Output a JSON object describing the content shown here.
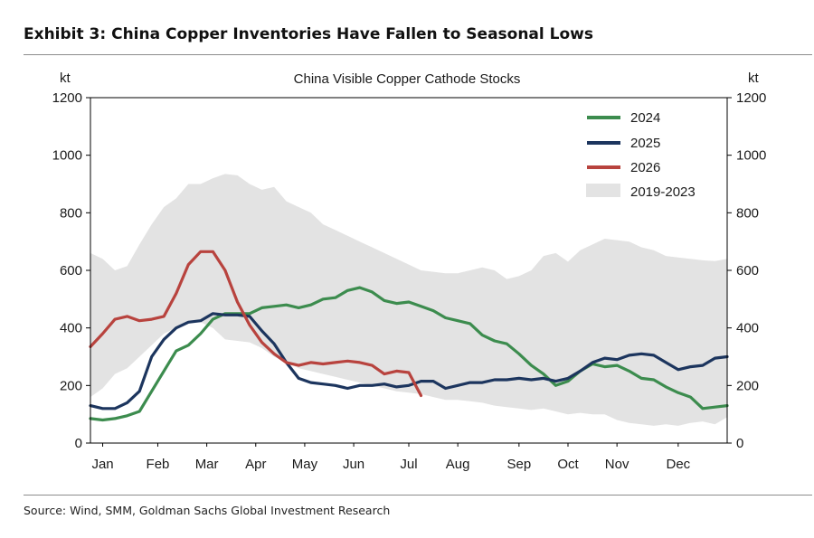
{
  "exhibit_title": "Exhibit 3: China Copper Inventories Have Fallen to Seasonal Lows",
  "source": "Source: Wind, SMM, Goldman Sachs Global Investment Research",
  "colors": {
    "2024": "#3c8c4e",
    "2025": "#1c355e",
    "2026": "#b8433e",
    "range": "#e3e3e3"
  },
  "chart_data": {
    "type": "line",
    "title": "China Visible Copper Cathode Stocks",
    "ylabel_left": "kt",
    "ylabel_right": "kt",
    "ylim": [
      0,
      1200
    ],
    "yticks": [
      0,
      200,
      400,
      600,
      800,
      1000,
      1200
    ],
    "x_unit": "week of year",
    "xlim": [
      1,
      53
    ],
    "xtick_labels": [
      "Jan",
      "Feb",
      "Mar",
      "Apr",
      "May",
      "Jun",
      "Jul",
      "Aug",
      "Sep",
      "Oct",
      "Nov",
      "Dec"
    ],
    "xtick_weeks": [
      2,
      6.5,
      10.5,
      14.5,
      18.5,
      22.5,
      27,
      31,
      36,
      40,
      44,
      49
    ],
    "grid": false,
    "legend": "top-right",
    "legend_entries": [
      "2024",
      "2025",
      "2026",
      "2019-2023"
    ],
    "band": {
      "name": "2019-2023",
      "x": [
        1,
        2,
        3,
        4,
        5,
        6,
        7,
        8,
        9,
        10,
        11,
        12,
        13,
        14,
        15,
        16,
        17,
        18,
        19,
        20,
        21,
        22,
        23,
        24,
        25,
        26,
        27,
        28,
        29,
        30,
        31,
        32,
        33,
        34,
        35,
        36,
        37,
        38,
        39,
        40,
        41,
        42,
        43,
        44,
        45,
        46,
        47,
        48,
        49,
        50,
        51,
        52,
        53
      ],
      "upper": [
        660,
        640,
        600,
        615,
        690,
        760,
        820,
        850,
        900,
        900,
        920,
        935,
        930,
        900,
        880,
        890,
        840,
        820,
        800,
        760,
        740,
        720,
        700,
        680,
        660,
        640,
        620,
        600,
        595,
        590,
        590,
        600,
        610,
        600,
        570,
        580,
        600,
        650,
        660,
        630,
        670,
        690,
        710,
        705,
        700,
        680,
        670,
        650,
        645,
        640,
        635,
        632,
        640
      ],
      "lower": [
        160,
        190,
        240,
        260,
        300,
        340,
        380,
        400,
        420,
        420,
        400,
        360,
        355,
        350,
        330,
        300,
        280,
        260,
        250,
        240,
        230,
        220,
        210,
        200,
        190,
        180,
        175,
        170,
        160,
        150,
        150,
        145,
        140,
        130,
        125,
        120,
        115,
        120,
        110,
        100,
        105,
        100,
        100,
        80,
        70,
        65,
        60,
        65,
        60,
        70,
        75,
        65,
        90
      ]
    },
    "series": [
      {
        "name": "2024",
        "x": [
          1,
          2,
          3,
          4,
          5,
          6,
          7,
          8,
          9,
          10,
          11,
          12,
          13,
          14,
          15,
          16,
          17,
          18,
          19,
          20,
          21,
          22,
          23,
          24,
          25,
          26,
          27,
          28,
          29,
          30,
          31,
          32,
          33,
          34,
          35,
          36,
          37,
          38,
          39,
          40,
          41,
          42,
          43,
          44,
          45,
          46,
          47,
          48,
          49,
          50,
          51,
          52,
          53
        ],
        "values": [
          85,
          80,
          85,
          95,
          110,
          180,
          250,
          320,
          340,
          380,
          430,
          450,
          450,
          450,
          470,
          475,
          480,
          470,
          480,
          500,
          505,
          530,
          540,
          525,
          495,
          485,
          490,
          475,
          460,
          435,
          425,
          415,
          375,
          355,
          345,
          310,
          270,
          240,
          200,
          215,
          250,
          275,
          265,
          270,
          250,
          225,
          220,
          195,
          175,
          160,
          120,
          125,
          130
        ]
      },
      {
        "name": "2025",
        "x": [
          1,
          2,
          3,
          4,
          5,
          6,
          7,
          8,
          9,
          10,
          11,
          12,
          13,
          14,
          15,
          16,
          17,
          18,
          19,
          20,
          21,
          22,
          23,
          24,
          25,
          26,
          27,
          28,
          29,
          30,
          31,
          32,
          33,
          34,
          35,
          36,
          37,
          38,
          39,
          40,
          41,
          42,
          43,
          44,
          45,
          46,
          47,
          48,
          49,
          50,
          51,
          52,
          53
        ],
        "values": [
          130,
          120,
          120,
          140,
          180,
          300,
          360,
          400,
          420,
          425,
          450,
          445,
          445,
          440,
          390,
          345,
          280,
          225,
          210,
          205,
          200,
          190,
          200,
          200,
          205,
          195,
          200,
          215,
          215,
          190,
          200,
          210,
          210,
          220,
          220,
          225,
          220,
          225,
          215,
          225,
          250,
          280,
          295,
          290,
          305,
          310,
          305,
          280,
          255,
          265,
          270,
          295,
          300
        ]
      },
      {
        "name": "2026",
        "x": [
          1,
          2,
          3,
          4,
          5,
          6,
          7,
          8,
          9,
          10,
          11,
          12,
          13,
          14,
          15,
          16,
          17,
          18,
          19,
          20,
          21,
          22,
          23,
          24,
          25,
          26,
          27,
          28
        ],
        "values": [
          335,
          380,
          430,
          440,
          425,
          430,
          440,
          520,
          620,
          665,
          665,
          600,
          490,
          410,
          350,
          310,
          280,
          270,
          280,
          275,
          280,
          285,
          280,
          270,
          240,
          250,
          245,
          165
        ]
      }
    ]
  }
}
